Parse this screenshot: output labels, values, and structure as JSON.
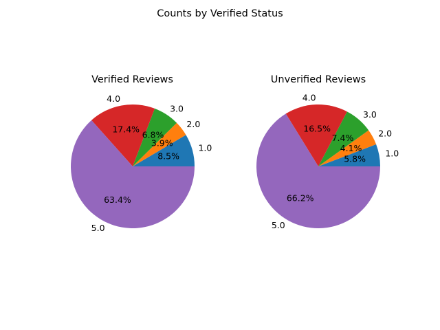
{
  "chart_data": {
    "type": "pie",
    "title": "Counts by Verified Status",
    "categories": [
      "1.0",
      "2.0",
      "3.0",
      "4.0",
      "5.0"
    ],
    "colors": [
      "#1f77b4",
      "#ff7f0e",
      "#2ca02c",
      "#d62728",
      "#9467bd"
    ],
    "charts": [
      {
        "title": "Verified Reviews",
        "labels": [
          "1.0",
          "2.0",
          "3.0",
          "4.0",
          "5.0"
        ],
        "values": [
          8.5,
          3.9,
          6.8,
          17.4,
          63.4
        ],
        "percent_labels": [
          "8.5%",
          "3.9%",
          "6.8%",
          "17.4%",
          "63.4%"
        ]
      },
      {
        "title": "Unverified Reviews",
        "labels": [
          "1.0",
          "2.0",
          "3.0",
          "4.0",
          "5.0"
        ],
        "values": [
          5.8,
          4.1,
          7.4,
          16.5,
          66.2
        ],
        "percent_labels": [
          "5.8%",
          "4.1%",
          "7.4%",
          "16.5%",
          "66.2%"
        ]
      }
    ]
  }
}
